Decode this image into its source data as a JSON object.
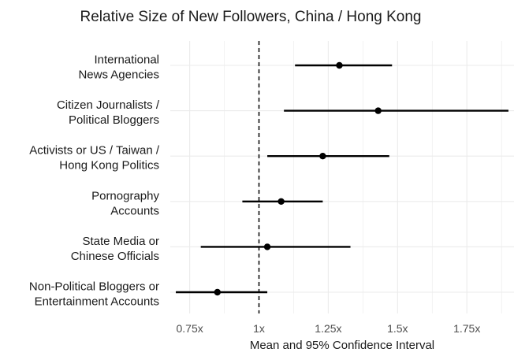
{
  "chart_data": {
    "type": "scatter",
    "title": "Relative Size of New Followers, China / Hong Kong",
    "xlabel": "Mean and 95% Confidence Interval",
    "ylabel": "",
    "xlim": [
      0.68,
      1.92
    ],
    "x_ticks": [
      0.75,
      1,
      1.25,
      1.5,
      1.75
    ],
    "x_tick_labels": [
      "0.75x",
      "1x",
      "1.25x",
      "1.5x",
      "1.75x"
    ],
    "reference_line": {
      "x": 1,
      "style": "dashed"
    },
    "grid": true,
    "legend": "none",
    "categories": [
      [
        "International",
        "News Agencies"
      ],
      [
        "Citizen Journalists /",
        "Political Bloggers"
      ],
      [
        "Activists or US / Taiwan /",
        "Hong Kong Politics"
      ],
      [
        "Pornography",
        "Accounts"
      ],
      [
        "State Media or",
        "Chinese Officials"
      ],
      [
        "Non-Political Bloggers or",
        "Entertainment Accounts"
      ]
    ],
    "points": [
      {
        "mean": 1.29,
        "lower": 1.13,
        "upper": 1.48
      },
      {
        "mean": 1.43,
        "lower": 1.09,
        "upper": 1.9
      },
      {
        "mean": 1.23,
        "lower": 1.03,
        "upper": 1.47
      },
      {
        "mean": 1.08,
        "lower": 0.94,
        "upper": 1.23
      },
      {
        "mean": 1.03,
        "lower": 0.79,
        "upper": 1.33
      },
      {
        "mean": 0.85,
        "lower": 0.7,
        "upper": 1.03
      }
    ],
    "colors": {
      "points": "#000000",
      "grid": "#ebebeb",
      "text": "#1a1a1a",
      "tick_text": "#4d4d4d"
    }
  }
}
